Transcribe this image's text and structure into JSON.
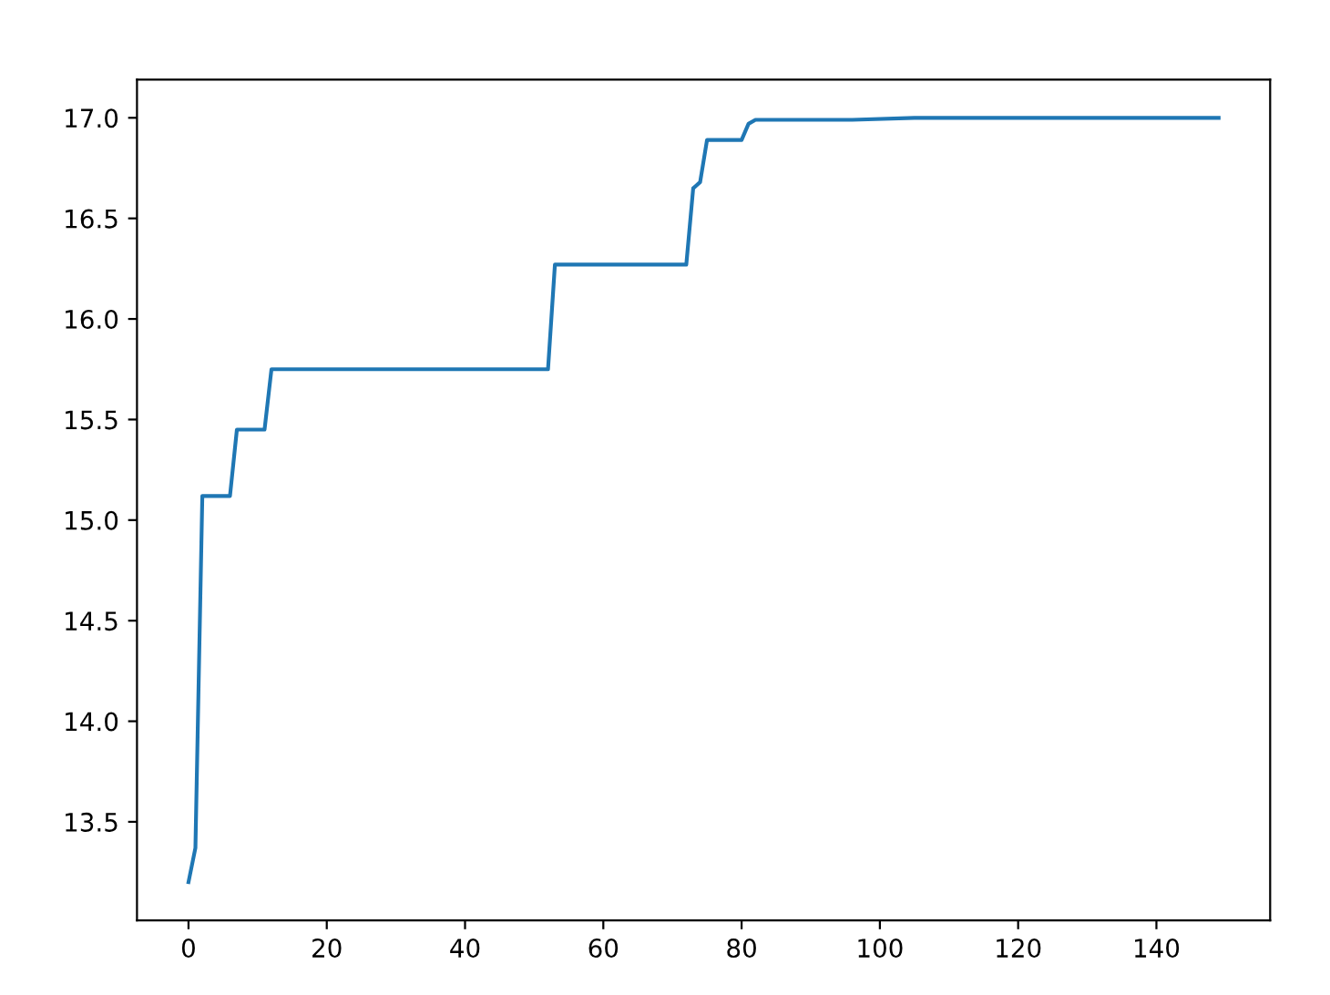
{
  "chart_data": {
    "type": "line",
    "x": [
      0,
      1,
      2,
      6,
      7,
      11,
      12,
      52,
      53,
      72,
      73,
      74,
      75,
      80,
      81,
      82,
      96,
      105,
      149
    ],
    "series": [
      {
        "color": "#1f77b4",
        "values": [
          13.2,
          13.37,
          15.12,
          15.12,
          15.45,
          15.45,
          15.75,
          15.75,
          16.27,
          16.27,
          16.65,
          16.68,
          16.89,
          16.89,
          16.97,
          16.99,
          16.99,
          17.0,
          17.0
        ]
      }
    ],
    "xlim": [
      -7.45,
      156.45
    ],
    "ylim": [
      13.01,
      17.19
    ],
    "xticks": [
      0,
      20,
      40,
      60,
      80,
      100,
      120,
      140
    ],
    "yticks": [
      13.5,
      {
        "value": 14,
        "label": "14.0"
      },
      14.5,
      {
        "value": 15,
        "label": "15.0"
      },
      15.5,
      {
        "value": 16,
        "label": "16.0"
      },
      16.5,
      {
        "value": 17,
        "label": "17.0"
      }
    ],
    "grid": false,
    "legend": false
  }
}
